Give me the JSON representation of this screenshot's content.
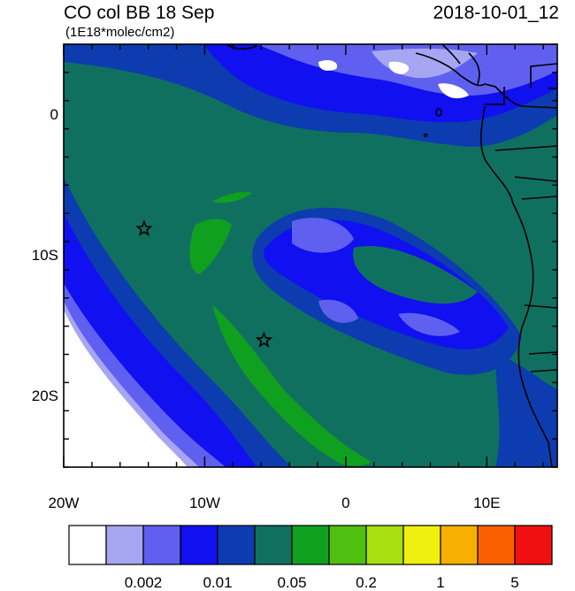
{
  "header": {
    "title_left": "CO col BB 18 Sep",
    "units": "(1E18*molec/cm2)",
    "title_right": "2018-10-01_12"
  },
  "map": {
    "lon_range": [
      -20,
      15
    ],
    "lat_range": [
      -25,
      5
    ],
    "y_ticks": [
      {
        "lat": 0,
        "label": "0"
      },
      {
        "lat": -10,
        "label": "10S"
      },
      {
        "lat": -20,
        "label": "20S"
      }
    ],
    "x_ticks": [
      {
        "lon": -20,
        "label": "20W"
      },
      {
        "lon": -10,
        "label": "10W"
      },
      {
        "lon": 0,
        "label": "0"
      },
      {
        "lon": 10,
        "label": "10E"
      }
    ],
    "markers": [
      {
        "name": "star-marker",
        "lon": -14.3,
        "lat": -8.1
      },
      {
        "name": "star-marker",
        "lon": -5.8,
        "lat": -16.0
      }
    ]
  },
  "colorbar": {
    "colors": [
      "#ffffff",
      "#a6a6f2",
      "#5f5ff0",
      "#1010f0",
      "#0c3cb0",
      "#107060",
      "#10a020",
      "#50c010",
      "#a8e010",
      "#f0f010",
      "#f8b000",
      "#f86000",
      "#f01010"
    ],
    "labels": [
      {
        "index": 2,
        "text": "0.002"
      },
      {
        "index": 4,
        "text": "0.01"
      },
      {
        "index": 6,
        "text": "0.05"
      },
      {
        "index": 8,
        "text": "0.2"
      },
      {
        "index": 10,
        "text": "1"
      },
      {
        "index": 12,
        "text": "5"
      }
    ]
  }
}
